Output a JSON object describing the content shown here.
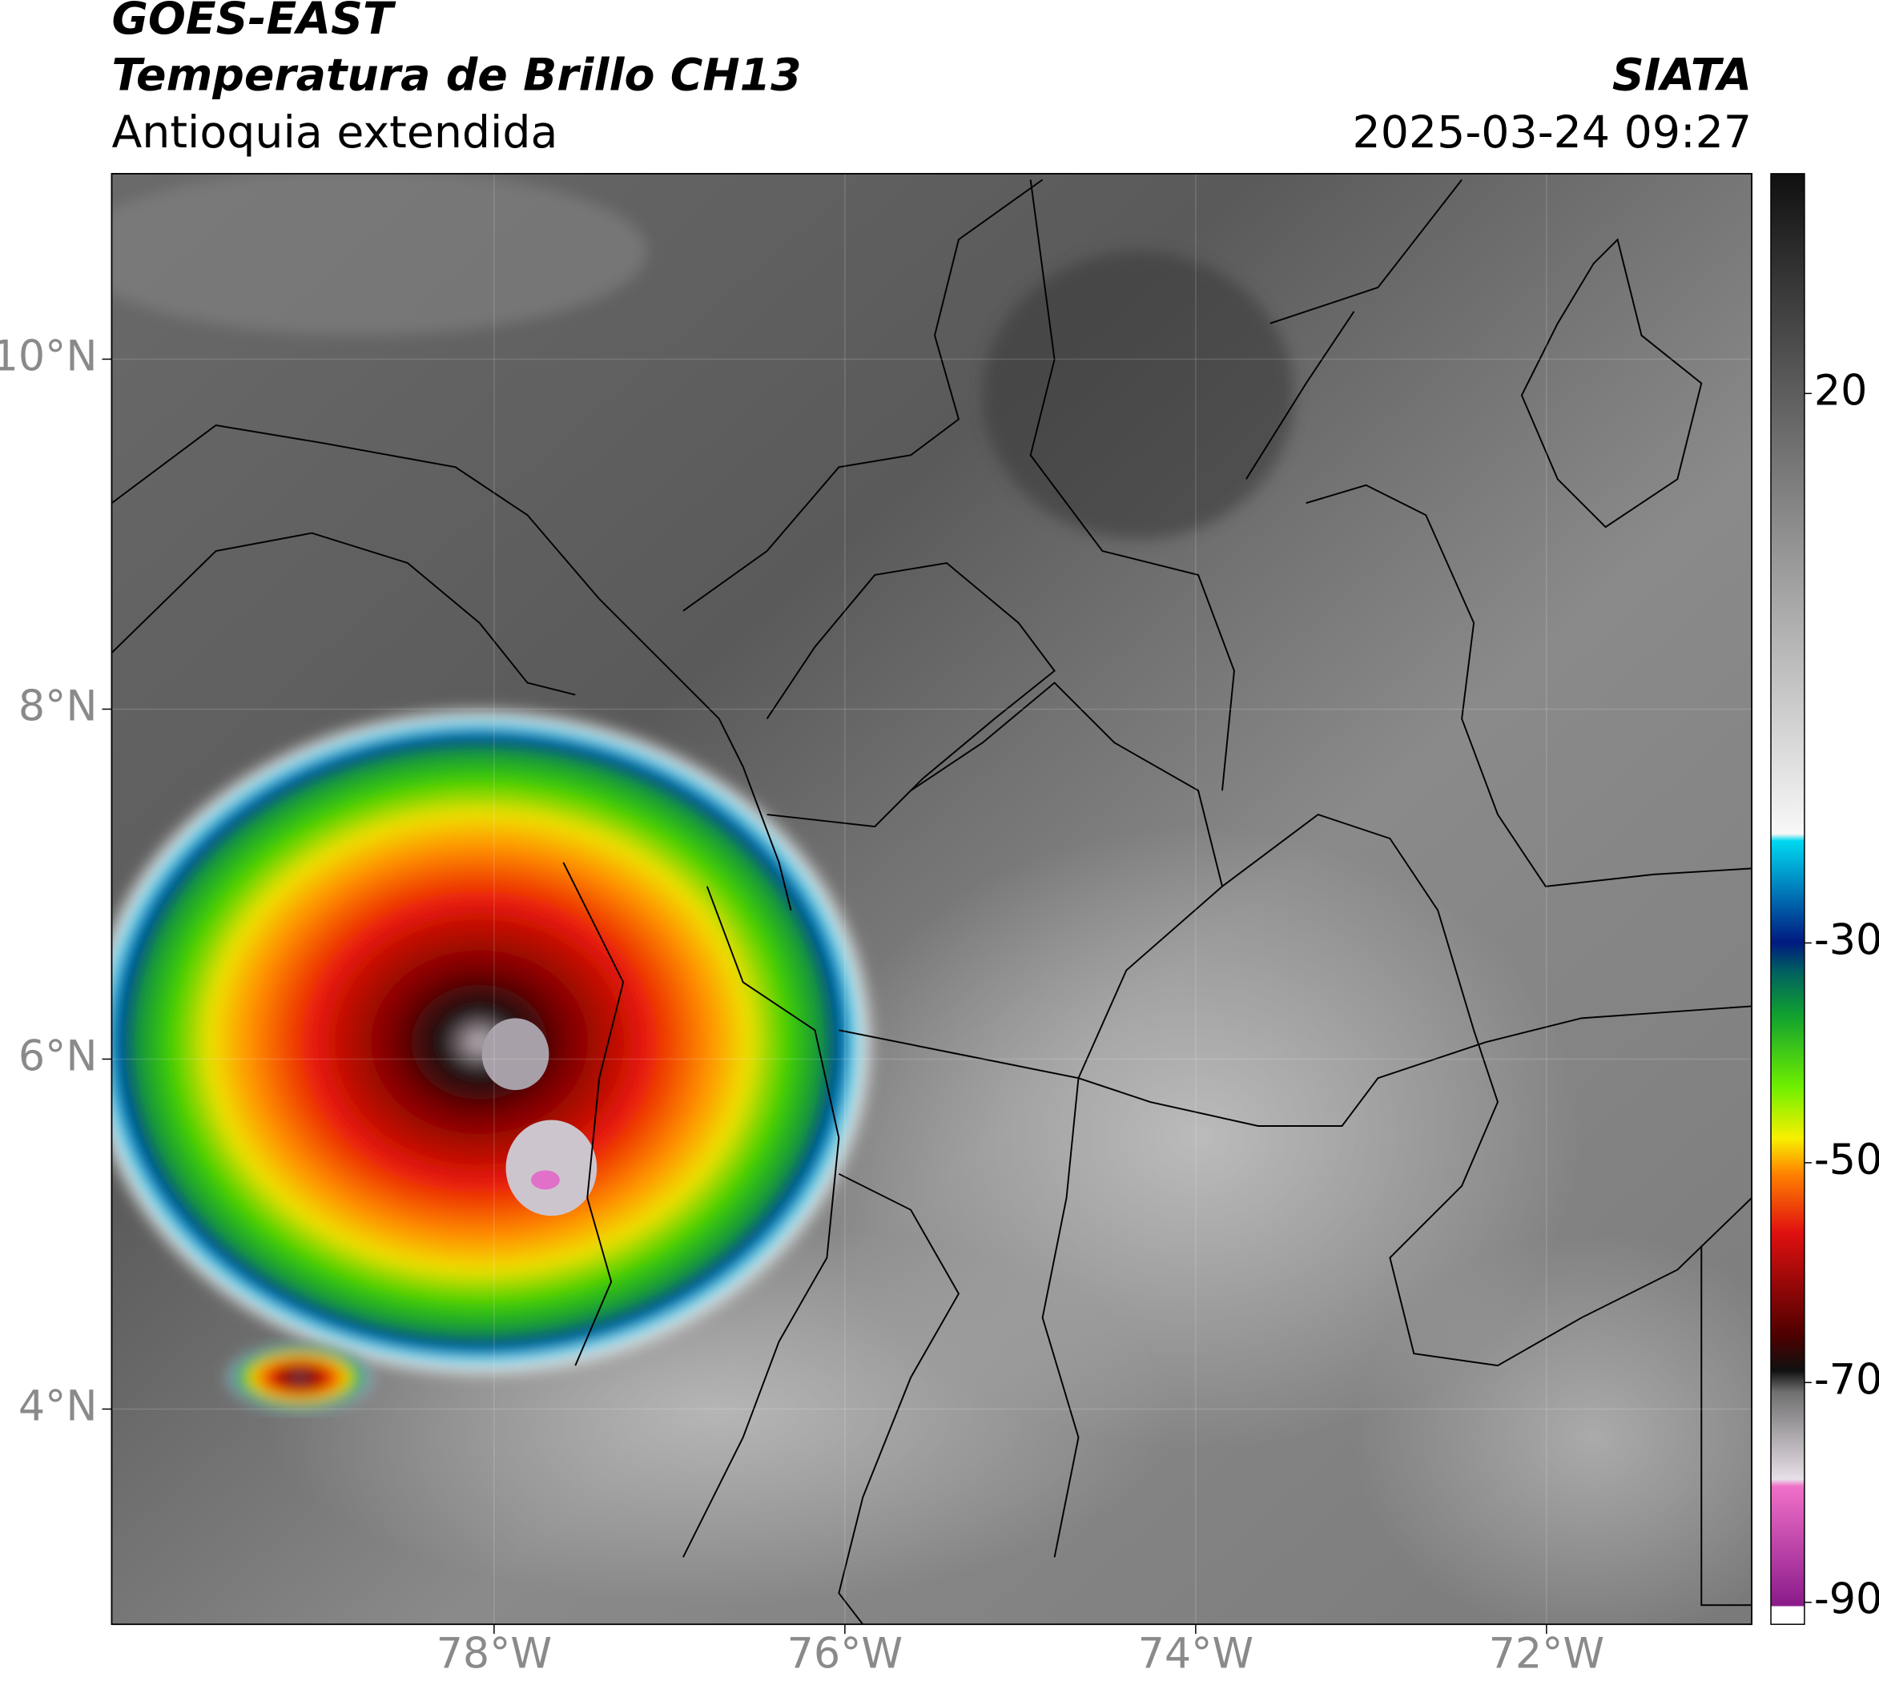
{
  "header": {
    "title": "GOES-EAST",
    "subtitle": "Temperatura de Brillo CH13",
    "region": "Antioquia extendida",
    "source": "SIATA",
    "datetime": "2025-03-24 09:27"
  },
  "map": {
    "xlim": [
      -80.18,
      -70.83
    ],
    "ylim": [
      2.77,
      11.06
    ],
    "xticks": [
      {
        "value": -78,
        "label": "78°W"
      },
      {
        "value": -76,
        "label": "76°W"
      },
      {
        "value": -74,
        "label": "74°W"
      },
      {
        "value": -72,
        "label": "72°W"
      }
    ],
    "yticks": [
      {
        "value": 4,
        "label": "4°N"
      },
      {
        "value": 6,
        "label": "6°N"
      },
      {
        "value": 8,
        "label": "8°N"
      },
      {
        "value": 10,
        "label": "10°N"
      }
    ],
    "grid": true
  },
  "colorbar": {
    "lim": [
      -92,
      40
    ],
    "ticks": [
      20,
      -30,
      -50,
      -70,
      -90
    ]
  }
}
